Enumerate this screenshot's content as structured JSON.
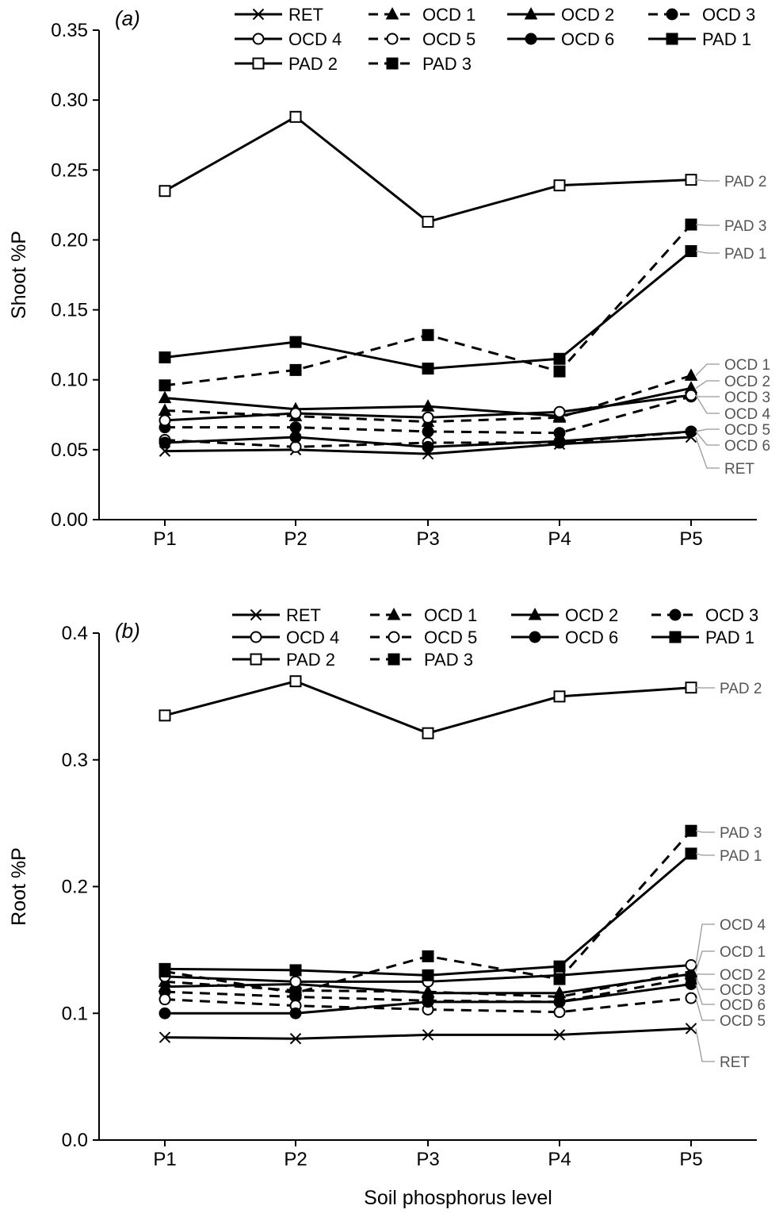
{
  "figure": {
    "xlabel": "Soil phosphorus level"
  },
  "chart_data": [
    {
      "type": "line",
      "panel_label": "(a)",
      "ylabel": "Shoot %P",
      "xlabel": "",
      "categories": [
        "P1",
        "P2",
        "P3",
        "P4",
        "P5"
      ],
      "ylim": [
        0,
        0.35
      ],
      "yticks": [
        "0.00",
        "0.05",
        "0.10",
        "0.15",
        "0.20",
        "0.25",
        "0.30",
        "0.35"
      ],
      "grid": false,
      "legend_position": "top",
      "series": [
        {
          "name": "RET",
          "values": [
            0.049,
            0.05,
            0.047,
            0.054,
            0.059
          ]
        },
        {
          "name": "OCD 1",
          "values": [
            0.078,
            0.074,
            0.07,
            0.073,
            0.103
          ]
        },
        {
          "name": "OCD 2",
          "values": [
            0.087,
            0.079,
            0.081,
            0.074,
            0.094
          ]
        },
        {
          "name": "OCD 3",
          "values": [
            0.066,
            0.066,
            0.063,
            0.062,
            0.088
          ]
        },
        {
          "name": "OCD 4",
          "values": [
            0.071,
            0.076,
            0.073,
            0.077,
            0.089
          ]
        },
        {
          "name": "OCD 5",
          "values": [
            0.057,
            0.052,
            0.055,
            0.055,
            0.063
          ]
        },
        {
          "name": "OCD 6",
          "values": [
            0.055,
            0.059,
            0.052,
            0.056,
            0.063
          ]
        },
        {
          "name": "PAD 1",
          "values": [
            0.116,
            0.127,
            0.108,
            0.115,
            0.192
          ]
        },
        {
          "name": "PAD 2",
          "values": [
            0.235,
            0.288,
            0.213,
            0.239,
            0.243
          ]
        },
        {
          "name": "PAD 3",
          "values": [
            0.096,
            0.107,
            0.132,
            0.106,
            0.211
          ]
        }
      ],
      "end_labels": [
        "PAD 2",
        "PAD 3",
        "PAD 1",
        "OCD 1",
        "OCD 2",
        "OCD 3",
        "OCD 4",
        "OCD 5",
        "OCD 6",
        "RET"
      ]
    },
    {
      "type": "line",
      "panel_label": "(b)",
      "ylabel": "Root %P",
      "xlabel": "Soil phosphorus level",
      "categories": [
        "P1",
        "P2",
        "P3",
        "P4",
        "P5"
      ],
      "ylim": [
        0,
        0.4
      ],
      "yticks": [
        "0.0",
        "0.1",
        "0.2",
        "0.3",
        "0.4"
      ],
      "grid": false,
      "legend_position": "top",
      "series": [
        {
          "name": "RET",
          "values": [
            0.081,
            0.08,
            0.083,
            0.083,
            0.088
          ]
        },
        {
          "name": "OCD 1",
          "values": [
            0.125,
            0.118,
            0.117,
            0.113,
            0.133
          ]
        },
        {
          "name": "OCD 2",
          "values": [
            0.121,
            0.123,
            0.116,
            0.116,
            0.131
          ]
        },
        {
          "name": "OCD 3",
          "values": [
            0.117,
            0.113,
            0.11,
            0.109,
            0.128
          ]
        },
        {
          "name": "OCD 4",
          "values": [
            0.129,
            0.125,
            0.125,
            0.13,
            0.138
          ]
        },
        {
          "name": "OCD 5",
          "values": [
            0.111,
            0.106,
            0.103,
            0.101,
            0.112
          ]
        },
        {
          "name": "OCD 6",
          "values": [
            0.1,
            0.1,
            0.109,
            0.109,
            0.123
          ]
        },
        {
          "name": "PAD 1",
          "values": [
            0.135,
            0.134,
            0.13,
            0.137,
            0.226
          ]
        },
        {
          "name": "PAD 2",
          "values": [
            0.335,
            0.362,
            0.321,
            0.35,
            0.357
          ]
        },
        {
          "name": "PAD 3",
          "values": [
            0.133,
            0.116,
            0.145,
            0.127,
            0.244
          ]
        }
      ],
      "end_labels": [
        "PAD 2",
        "PAD 3",
        "PAD 1",
        "OCD 4",
        "OCD 1",
        "OCD 2",
        "OCD 3",
        "OCD 6",
        "OCD 5",
        "RET"
      ]
    }
  ]
}
